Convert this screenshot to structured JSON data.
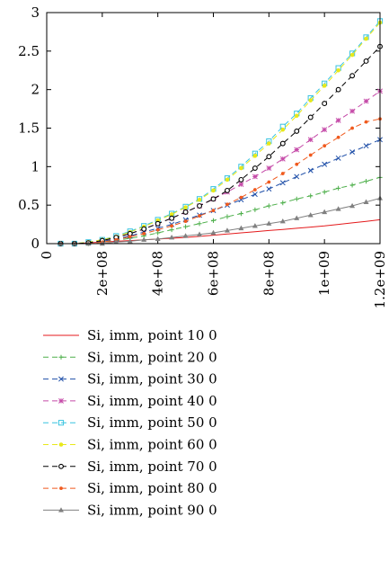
{
  "chart_data": {
    "type": "line",
    "title": "",
    "xlabel": "",
    "ylabel": "",
    "xlim": [
      0,
      1200000000
    ],
    "ylim": [
      0,
      3
    ],
    "grid": false,
    "legend_position": "below",
    "x_ticks": [
      {
        "value": 0,
        "label": "0"
      },
      {
        "value": 200000000,
        "label": "2e+08"
      },
      {
        "value": 400000000,
        "label": "4e+08"
      },
      {
        "value": 600000000,
        "label": "6e+08"
      },
      {
        "value": 800000000,
        "label": "8e+08"
      },
      {
        "value": 1000000000,
        "label": "1e+09"
      },
      {
        "value": 1200000000,
        "label": "1.2e+09"
      }
    ],
    "y_ticks": [
      {
        "value": 0,
        "label": "0"
      },
      {
        "value": 0.5,
        "label": "0.5"
      },
      {
        "value": 1,
        "label": "1"
      },
      {
        "value": 1.5,
        "label": "1.5"
      },
      {
        "value": 2,
        "label": "2"
      },
      {
        "value": 2.5,
        "label": "2.5"
      },
      {
        "value": 3,
        "label": "3"
      }
    ],
    "x": [
      50000000,
      100000000,
      150000000,
      200000000,
      250000000,
      300000000,
      350000000,
      400000000,
      450000000,
      500000000,
      550000000,
      600000000,
      650000000,
      700000000,
      750000000,
      800000000,
      850000000,
      900000000,
      950000000,
      1000000000,
      1050000000,
      1100000000,
      1150000000,
      1200000000
    ],
    "series": [
      {
        "name": "Si, imm, point 10 0",
        "color": "#e41a1c",
        "dash": "",
        "marker": "none",
        "values": [
          0.0,
          0.0,
          0.01,
          0.02,
          0.03,
          0.04,
          0.05,
          0.06,
          0.07,
          0.08,
          0.095,
          0.11,
          0.125,
          0.14,
          0.155,
          0.17,
          0.185,
          0.2,
          0.215,
          0.23,
          0.25,
          0.27,
          0.29,
          0.31
        ]
      },
      {
        "name": "Si, imm, point 20 0",
        "color": "#4daf4a",
        "dash": "6,4",
        "marker": "plus",
        "values": [
          0.0,
          0.0,
          0.0,
          0.02,
          0.04,
          0.07,
          0.1,
          0.14,
          0.18,
          0.22,
          0.26,
          0.3,
          0.35,
          0.39,
          0.44,
          0.49,
          0.53,
          0.58,
          0.62,
          0.67,
          0.72,
          0.76,
          0.81,
          0.86
        ]
      },
      {
        "name": "Si, imm, point 30 0",
        "color": "#1f4fa8",
        "dash": "6,4",
        "marker": "cross",
        "values": [
          0.0,
          0.0,
          0.01,
          0.03,
          0.06,
          0.1,
          0.15,
          0.2,
          0.25,
          0.31,
          0.37,
          0.43,
          0.5,
          0.57,
          0.64,
          0.71,
          0.79,
          0.87,
          0.95,
          1.03,
          1.11,
          1.19,
          1.27,
          1.35
        ]
      },
      {
        "name": "Si, imm, point 40 0",
        "color": "#c54aa8",
        "dash": "6,4",
        "marker": "star",
        "values": [
          0.0,
          0.0,
          0.01,
          0.04,
          0.08,
          0.13,
          0.19,
          0.26,
          0.33,
          0.41,
          0.49,
          0.58,
          0.67,
          0.77,
          0.87,
          0.98,
          1.1,
          1.22,
          1.35,
          1.48,
          1.6,
          1.72,
          1.85,
          1.98
        ]
      },
      {
        "name": "Si, imm, point 50 0",
        "color": "#39c4e0",
        "dash": "6,4",
        "marker": "square",
        "values": [
          0.0,
          0.0,
          0.02,
          0.05,
          0.1,
          0.16,
          0.23,
          0.31,
          0.39,
          0.48,
          0.58,
          0.71,
          0.85,
          1.0,
          1.17,
          1.33,
          1.52,
          1.69,
          1.89,
          2.08,
          2.28,
          2.47,
          2.68,
          2.89
        ]
      },
      {
        "name": "Si, imm, point 60 0",
        "color": "#e8e81a",
        "dash": "6,4",
        "marker": "circle",
        "values": [
          0.0,
          0.0,
          0.02,
          0.05,
          0.09,
          0.15,
          0.22,
          0.3,
          0.38,
          0.47,
          0.57,
          0.69,
          0.83,
          0.98,
          1.14,
          1.3,
          1.48,
          1.66,
          1.86,
          2.05,
          2.25,
          2.45,
          2.66,
          2.87
        ]
      },
      {
        "name": "Si, imm, point 70 0",
        "color": "#000000",
        "dash": "6,4",
        "marker": "ocircle",
        "values": [
          0.0,
          0.0,
          0.01,
          0.04,
          0.08,
          0.13,
          0.19,
          0.26,
          0.33,
          0.41,
          0.49,
          0.58,
          0.69,
          0.83,
          0.98,
          1.13,
          1.3,
          1.46,
          1.64,
          1.82,
          2.0,
          2.18,
          2.37,
          2.56
        ]
      },
      {
        "name": "Si, imm, point 80 0",
        "color": "#f05a1e",
        "dash": "6,4",
        "marker": "dot",
        "values": [
          0.0,
          0.0,
          0.0,
          0.02,
          0.05,
          0.09,
          0.13,
          0.18,
          0.23,
          0.29,
          0.36,
          0.43,
          0.51,
          0.6,
          0.7,
          0.8,
          0.91,
          1.03,
          1.15,
          1.27,
          1.38,
          1.5,
          1.58,
          1.62
        ]
      },
      {
        "name": "Si, imm, point 90 0",
        "color": "#808080",
        "dash": "",
        "marker": "triangle",
        "values": [
          0.0,
          0.0,
          0.0,
          0.0,
          0.02,
          0.03,
          0.05,
          0.06,
          0.08,
          0.1,
          0.12,
          0.14,
          0.17,
          0.2,
          0.23,
          0.26,
          0.29,
          0.33,
          0.37,
          0.41,
          0.45,
          0.49,
          0.54,
          0.59
        ]
      }
    ]
  }
}
